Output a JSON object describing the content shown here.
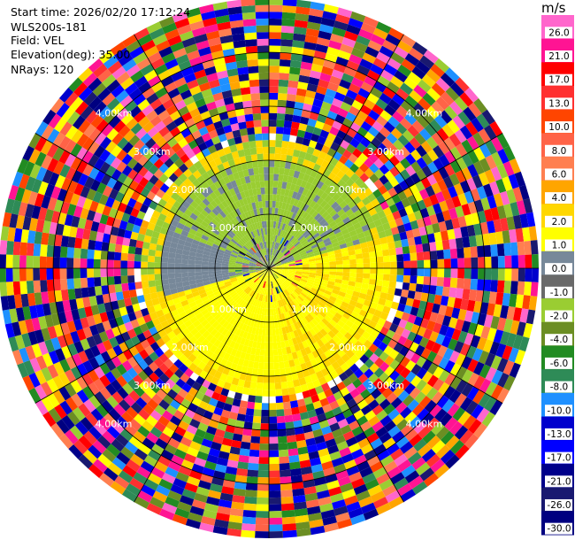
{
  "header": {
    "line1": "Start time: 2026/02/20 17:12:24",
    "line2": "WLS200s-181",
    "line3": "Field: VEL",
    "line4": "Elevation(deg): 35.00",
    "line5": "NRays: 120"
  },
  "colorbar": {
    "unit": "m/s",
    "levels": [
      "26.0",
      "21.0",
      "17.0",
      "13.0",
      "10.0",
      "8.0",
      "6.0",
      "4.0",
      "2.0",
      "1.0",
      "0.0",
      "-1.0",
      "-2.0",
      "-4.0",
      "-6.0",
      "-8.0",
      "-10.0",
      "-13.0",
      "-17.0",
      "-21.0",
      "-26.0",
      "-30.0"
    ],
    "colors": [
      "#ff66cc",
      "#ff1493",
      "#ff0000",
      "#ff3030",
      "#ff4500",
      "#ff6347",
      "#ff7f50",
      "#ffa500",
      "#ffd700",
      "#ffff00",
      "#778899",
      "#696969",
      "#9acd32",
      "#6b8e23",
      "#228b22",
      "#2e8b57",
      "#1e90ff",
      "#0000cd",
      "#0000ff",
      "#00008b",
      "#191970",
      "#000080"
    ]
  },
  "chart_data": {
    "type": "ppi",
    "field": "VEL",
    "units": "m/s",
    "n_rays": 120,
    "elevation_deg": 35.0,
    "range_rings_km": [
      1.0,
      2.0,
      3.0,
      4.0
    ],
    "range_ring_labels": [
      "1.00km",
      "2.00km",
      "3.00km",
      "4.00km"
    ],
    "max_range_km": 5.0,
    "spoke_angles_deg": [
      0,
      30,
      60,
      90,
      120,
      150,
      180,
      210,
      240,
      270,
      300,
      330
    ],
    "valid_data_range_km": 2.35,
    "regions": [
      {
        "sector": "north-west",
        "range_km": [
          0.5,
          2.3
        ],
        "value_ms": -1.5
      },
      {
        "sector": "south-east",
        "range_km": [
          0.3,
          2.3
        ],
        "value_ms": 2.5
      },
      {
        "sector": "beyond-2.35km",
        "range_km": [
          2.35,
          5.0
        ],
        "value_ms": "noise"
      }
    ]
  }
}
